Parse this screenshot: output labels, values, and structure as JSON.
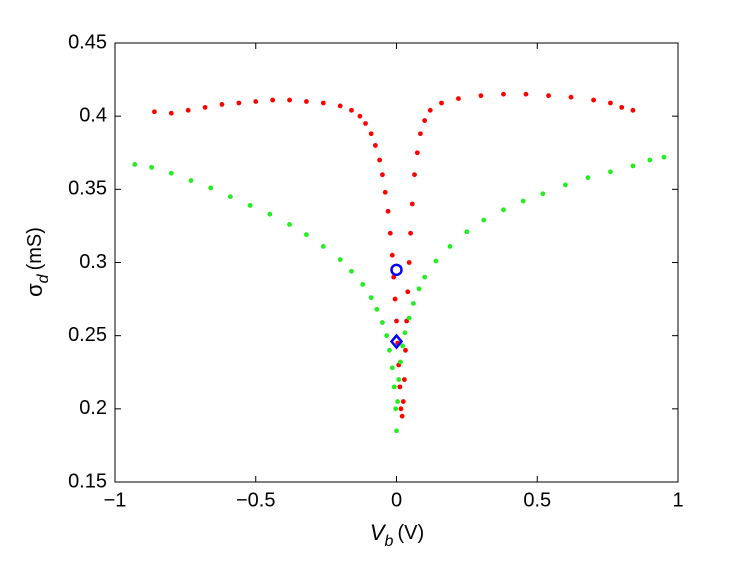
{
  "chart_data": {
    "type": "scatter",
    "xlabel": {
      "main": "V",
      "sub": "b",
      "unit": "(V)"
    },
    "ylabel": {
      "main": "σ",
      "sub": "d",
      "unit": "(mS)"
    },
    "xlim": [
      -1,
      1
    ],
    "xticks": [
      {
        "value": -1,
        "label": "−1"
      },
      {
        "value": -0.5,
        "label": "−0.5"
      },
      0,
      0.5,
      1
    ],
    "ylim": [
      0.15,
      0.45
    ],
    "yticks": [
      0.15,
      0.2,
      0.25,
      0.3,
      0.35,
      0.4,
      0.45
    ],
    "grid": false,
    "series": [
      {
        "color": "#ff0000",
        "marker": "dot",
        "x": [
          -0.86,
          -0.8,
          -0.74,
          -0.68,
          -0.62,
          -0.56,
          -0.5,
          -0.44,
          -0.38,
          -0.32,
          -0.26,
          -0.2,
          -0.16,
          -0.13,
          -0.11,
          -0.09,
          -0.075,
          -0.06,
          -0.05,
          -0.04,
          -0.03,
          -0.022,
          -0.015,
          -0.01,
          -0.005,
          0.0,
          0.004,
          0.008,
          0.012,
          0.016,
          0.02,
          0.024,
          0.028,
          0.032,
          0.036,
          0.04,
          0.045,
          0.05,
          0.056,
          0.064,
          0.074,
          0.085,
          0.1,
          0.12,
          0.16,
          0.22,
          0.3,
          0.38,
          0.46,
          0.54,
          0.62,
          0.7,
          0.76,
          0.8,
          0.84
        ],
        "values": [
          0.403,
          0.402,
          0.404,
          0.406,
          0.408,
          0.409,
          0.41,
          0.411,
          0.411,
          0.41,
          0.409,
          0.407,
          0.404,
          0.4,
          0.395,
          0.388,
          0.38,
          0.37,
          0.36,
          0.348,
          0.335,
          0.32,
          0.305,
          0.29,
          0.275,
          0.26,
          0.245,
          0.23,
          0.215,
          0.2,
          0.195,
          0.205,
          0.22,
          0.24,
          0.26,
          0.28,
          0.3,
          0.32,
          0.34,
          0.36,
          0.375,
          0.388,
          0.397,
          0.404,
          0.409,
          0.412,
          0.414,
          0.415,
          0.415,
          0.414,
          0.413,
          0.411,
          0.409,
          0.406,
          0.404
        ]
      },
      {
        "color": "#22ee22",
        "marker": "dot",
        "x": [
          -0.93,
          -0.87,
          -0.8,
          -0.73,
          -0.66,
          -0.59,
          -0.52,
          -0.45,
          -0.38,
          -0.32,
          -0.26,
          -0.2,
          -0.16,
          -0.12,
          -0.09,
          -0.07,
          -0.05,
          -0.035,
          -0.025,
          -0.015,
          -0.008,
          -0.003,
          0.0,
          0.004,
          0.008,
          0.014,
          0.022,
          0.03,
          0.045,
          0.06,
          0.08,
          0.1,
          0.14,
          0.19,
          0.25,
          0.31,
          0.38,
          0.45,
          0.52,
          0.6,
          0.68,
          0.76,
          0.84,
          0.9,
          0.95
        ],
        "values": [
          0.367,
          0.365,
          0.361,
          0.356,
          0.351,
          0.345,
          0.339,
          0.333,
          0.326,
          0.319,
          0.311,
          0.302,
          0.294,
          0.285,
          0.276,
          0.268,
          0.259,
          0.25,
          0.24,
          0.228,
          0.215,
          0.2,
          0.185,
          0.205,
          0.22,
          0.232,
          0.243,
          0.252,
          0.262,
          0.272,
          0.282,
          0.29,
          0.301,
          0.311,
          0.321,
          0.329,
          0.336,
          0.342,
          0.347,
          0.353,
          0.358,
          0.362,
          0.366,
          0.37,
          0.372
        ]
      },
      {
        "color": "#0000ff",
        "marker": "circle",
        "x": [
          0
        ],
        "values": [
          0.295
        ]
      },
      {
        "color": "#0000ff",
        "marker": "diamond",
        "x": [
          0
        ],
        "values": [
          0.246
        ]
      }
    ]
  }
}
